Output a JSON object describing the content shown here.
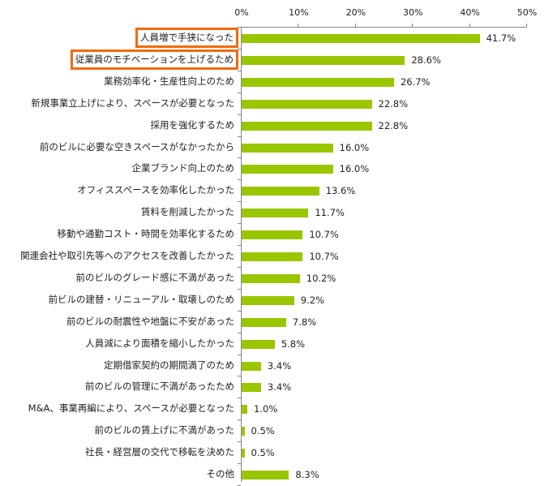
{
  "chart_data": {
    "type": "bar",
    "orientation": "horizontal",
    "title": "",
    "xlabel": "",
    "ylabel": "",
    "xlim": [
      0,
      50
    ],
    "x_ticks": [
      "0%",
      "10%",
      "20%",
      "30%",
      "40%",
      "50%"
    ],
    "axis_position": "top",
    "grid": false,
    "legend": null,
    "bar_color": "#99C600",
    "highlight_color": "#F26A0E",
    "highlighted_categories": [
      "人員増で手狭になった",
      "従業員のモチベーションを上げるため"
    ],
    "categories": [
      "人員増で手狭になった",
      "従業員のモチベーションを上げるため",
      "業務効率化・生産性向上のため",
      "新規事業立上げにより、スペースが必要となった",
      "採用を強化するため",
      "前のビルに必要な空きスペースがなかったから",
      "企業ブランド向上のため",
      "オフィススペースを効率化したかった",
      "賃料を削減したかった",
      "移動や通勤コスト・時間を効率化するため",
      "関連会社や取引先等へのアクセスを改善したかった",
      "前のビルのグレード感に不満があった",
      "前ビルの建替・リニューアル・取壊しのため",
      "前のビルの耐震性や地盤に不安があった",
      "人員減により面積を縮小したかった",
      "定期借家契約の期間満了のため",
      "前のビルの管理に不満があったため",
      "M&A、事業再編により、スペースが必要となった",
      "前のビルの賃上げに不満があった",
      "社長・経営層の交代で移転を決めた",
      "その他"
    ],
    "values": [
      41.7,
      28.6,
      26.7,
      22.8,
      22.8,
      16.0,
      16.0,
      13.6,
      11.7,
      10.7,
      10.7,
      10.2,
      9.2,
      7.8,
      5.8,
      3.4,
      3.4,
      1.0,
      0.5,
      0.5,
      8.3
    ],
    "value_labels": [
      "41.7%",
      "28.6%",
      "26.7%",
      "22.8%",
      "22.8%",
      "16.0%",
      "16.0%",
      "13.6%",
      "11.7%",
      "10.7%",
      "10.7%",
      "10.2%",
      "9.2%",
      "7.8%",
      "5.8%",
      "3.4%",
      "3.4%",
      "1.0%",
      "0.5%",
      "0.5%",
      "8.3%"
    ]
  }
}
